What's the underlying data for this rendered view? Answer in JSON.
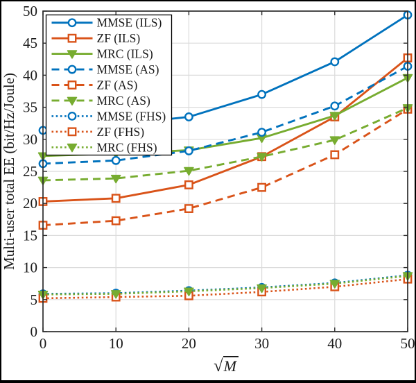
{
  "figure": {
    "background": "#ffffff",
    "outer_border_color": "#000000",
    "frame_color": "#2b2b2b",
    "grid_color": "#dbdbdb",
    "text_color": "#1a1a1a",
    "legend_border_color": "#000000"
  },
  "chart_data": {
    "type": "line",
    "title": "",
    "xlabel": "sqrt(M)",
    "xlabel_radical": "√",
    "xlabel_arg": "M",
    "ylabel": "Multi-user total EE (bit/Hz/Joule)",
    "xlim": [
      0,
      50
    ],
    "ylim": [
      0,
      50
    ],
    "xticks": [
      0,
      10,
      20,
      30,
      40,
      50
    ],
    "yticks": [
      0,
      5,
      10,
      15,
      20,
      25,
      30,
      35,
      40,
      45,
      50
    ],
    "grid": true,
    "legend_position": "top-left",
    "x": [
      0,
      10,
      20,
      30,
      40,
      50
    ],
    "series": [
      {
        "name": "MMSE (ILS)",
        "color": "#0072BD",
        "style": "solid",
        "marker": "circle",
        "values": [
          31.4,
          32.3,
          33.5,
          37.0,
          42.1,
          49.4
        ]
      },
      {
        "name": "ZF (ILS)",
        "color": "#D95319",
        "style": "solid",
        "marker": "square",
        "values": [
          20.3,
          20.8,
          22.9,
          27.3,
          33.5,
          42.7
        ]
      },
      {
        "name": "MRC (ILS)",
        "color": "#77AC30",
        "style": "solid",
        "marker": "triangle-down",
        "values": [
          27.4,
          27.8,
          28.3,
          30.2,
          33.7,
          39.6
        ]
      },
      {
        "name": "MMSE (AS)",
        "color": "#0072BD",
        "style": "dashed",
        "marker": "circle",
        "values": [
          26.2,
          26.7,
          28.2,
          31.1,
          35.2,
          41.4
        ]
      },
      {
        "name": "ZF (AS)",
        "color": "#D95319",
        "style": "dashed",
        "marker": "square",
        "values": [
          16.6,
          17.3,
          19.2,
          22.5,
          27.6,
          34.7
        ]
      },
      {
        "name": "MRC (AS)",
        "color": "#77AC30",
        "style": "dashed",
        "marker": "triangle-down",
        "values": [
          23.6,
          23.9,
          25.1,
          27.3,
          29.9,
          34.9
        ]
      },
      {
        "name": "MMSE (FHS)",
        "color": "#0072BD",
        "style": "dotted",
        "marker": "circle",
        "values": [
          5.9,
          6.0,
          6.4,
          6.9,
          7.6,
          8.8
        ]
      },
      {
        "name": "ZF (FHS)",
        "color": "#D95319",
        "style": "dotted",
        "marker": "square",
        "values": [
          5.2,
          5.4,
          5.6,
          6.2,
          7.0,
          8.2
        ]
      },
      {
        "name": "MRC (FHS)",
        "color": "#77AC30",
        "style": "dotted",
        "marker": "triangle-down",
        "values": [
          5.8,
          5.9,
          6.3,
          6.8,
          7.5,
          8.7
        ]
      }
    ]
  }
}
